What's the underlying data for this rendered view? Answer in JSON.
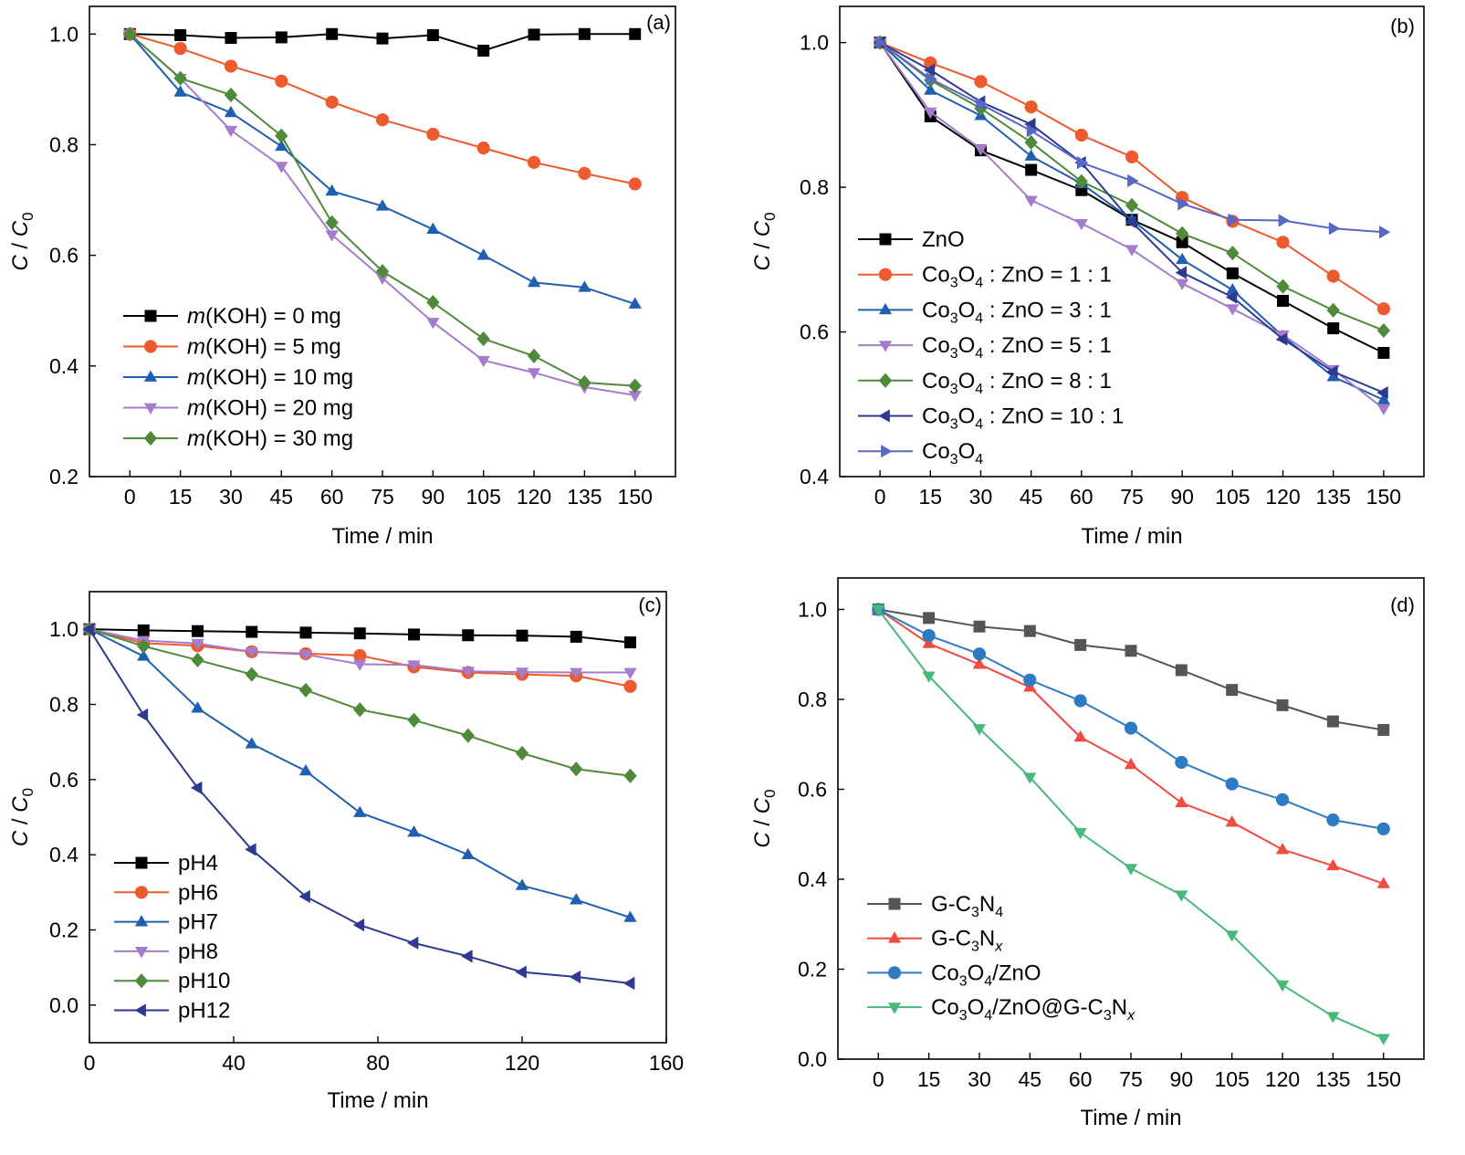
{
  "colors": {
    "black": "#000000",
    "orange": "#ec5a2e",
    "blue": "#1f5fb0",
    "violet": "#a57ccc",
    "green": "#4f8a3a",
    "navy": "#2e3a8f",
    "slate": "#5866c4",
    "gray": "#555555",
    "red": "#ef4b3f",
    "sky": "#2e7bc4",
    "mint": "#49b97b"
  },
  "chart_data": [
    {
      "panel": "(a)",
      "type": "line",
      "xlabel": "Time / min",
      "ylabel": "C / C0",
      "xlim": [
        -12,
        162
      ],
      "ylim": [
        0.2,
        1.05
      ],
      "xticks": [
        0,
        15,
        30,
        45,
        60,
        75,
        90,
        105,
        120,
        135,
        150
      ],
      "yticks": [
        0.2,
        0.4,
        0.6,
        0.8,
        1.0
      ],
      "legend_position": "bottom-left",
      "x": [
        0,
        15,
        30,
        45,
        60,
        75,
        90,
        105,
        120,
        135,
        150
      ],
      "series": [
        {
          "name": "m(KOH) = 0 mg",
          "legend": {
            "italic": "m",
            "rest": "(KOH) = 0 mg"
          },
          "marker": "square",
          "color": "#000000",
          "values": [
            1.0,
            0.998,
            0.993,
            0.994,
            1.0,
            0.992,
            0.998,
            0.97,
            0.999,
            1.0,
            1.0
          ]
        },
        {
          "name": "m(KOH) = 5 mg",
          "legend": {
            "italic": "m",
            "rest": "(KOH) = 5 mg"
          },
          "marker": "circle",
          "color": "#ec5a2e",
          "values": [
            1.0,
            0.974,
            0.942,
            0.915,
            0.877,
            0.845,
            0.819,
            0.794,
            0.768,
            0.748,
            0.729
          ]
        },
        {
          "name": "m(KOH) = 10 mg",
          "legend": {
            "italic": "m",
            "rest": "(KOH) = 10 mg"
          },
          "marker": "triangle-up",
          "color": "#1f5fb0",
          "values": [
            1.0,
            0.895,
            0.858,
            0.797,
            0.716,
            0.689,
            0.647,
            0.6,
            0.551,
            0.542,
            0.512
          ]
        },
        {
          "name": "m(KOH) = 20 mg",
          "legend": {
            "italic": "m",
            "rest": "(KOH) = 20 mg"
          },
          "marker": "triangle-down",
          "color": "#a57ccc",
          "values": [
            1.0,
            0.92,
            0.826,
            0.761,
            0.637,
            0.559,
            0.479,
            0.41,
            0.388,
            0.362,
            0.347
          ]
        },
        {
          "name": "m(KOH) = 30 mg",
          "legend": {
            "italic": "m",
            "rest": "(KOH) = 30 mg"
          },
          "marker": "diamond",
          "color": "#4f8a3a",
          "values": [
            1.0,
            0.92,
            0.89,
            0.816,
            0.659,
            0.571,
            0.515,
            0.449,
            0.418,
            0.37,
            0.364
          ]
        }
      ]
    },
    {
      "panel": "(b)",
      "type": "line",
      "xlabel": "Time / min",
      "ylabel": "C / C0",
      "xlim": [
        -12,
        162
      ],
      "ylim": [
        0.4,
        1.05
      ],
      "xticks": [
        0,
        15,
        30,
        45,
        60,
        75,
        90,
        105,
        120,
        135,
        150
      ],
      "yticks": [
        0.4,
        0.6,
        0.8,
        1.0
      ],
      "legend_position": "left",
      "x": [
        0,
        15,
        30,
        45,
        60,
        75,
        90,
        105,
        120,
        135,
        150
      ],
      "series": [
        {
          "name": "ZnO",
          "legend": {
            "parts": [
              [
                "ZnO",
                ""
              ]
            ]
          },
          "marker": "square",
          "color": "#000000",
          "values": [
            1.0,
            0.898,
            0.851,
            0.824,
            0.796,
            0.755,
            0.724,
            0.681,
            0.643,
            0.605,
            0.571
          ]
        },
        {
          "name": "Co3O4 : ZnO = 1 : 1",
          "legend": {
            "parts": [
              [
                "Co",
                ""
              ],
              [
                "3",
                "sub"
              ],
              [
                "O",
                ""
              ],
              [
                "4",
                "sub"
              ],
              [
                " : ZnO = 1 : 1",
                ""
              ]
            ]
          },
          "marker": "circle",
          "color": "#ec5a2e",
          "values": [
            1.0,
            0.972,
            0.946,
            0.911,
            0.872,
            0.842,
            0.786,
            0.753,
            0.724,
            0.677,
            0.632
          ]
        },
        {
          "name": "Co3O4 : ZnO = 3 : 1",
          "legend": {
            "parts": [
              [
                "Co",
                ""
              ],
              [
                "3",
                "sub"
              ],
              [
                "O",
                ""
              ],
              [
                "4",
                "sub"
              ],
              [
                " : ZnO = 3 : 1",
                ""
              ]
            ]
          },
          "marker": "triangle-up",
          "color": "#1f5fb0",
          "values": [
            1.0,
            0.934,
            0.899,
            0.843,
            0.805,
            0.755,
            0.7,
            0.658,
            0.594,
            0.538,
            0.506
          ]
        },
        {
          "name": "Co3O4 : ZnO = 5 : 1",
          "legend": {
            "parts": [
              [
                "Co",
                ""
              ],
              [
                "3",
                "sub"
              ],
              [
                "O",
                ""
              ],
              [
                "4",
                "sub"
              ],
              [
                " : ZnO = 5 : 1",
                ""
              ]
            ]
          },
          "marker": "triangle-down",
          "color": "#a57ccc",
          "values": [
            1.0,
            0.904,
            0.853,
            0.782,
            0.75,
            0.714,
            0.667,
            0.632,
            0.596,
            0.548,
            0.494
          ]
        },
        {
          "name": "Co3O4 : ZnO = 8 : 1",
          "legend": {
            "parts": [
              [
                "Co",
                ""
              ],
              [
                "3",
                "sub"
              ],
              [
                "O",
                ""
              ],
              [
                "4",
                "sub"
              ],
              [
                " : ZnO = 8 : 1",
                ""
              ]
            ]
          },
          "marker": "diamond",
          "color": "#4f8a3a",
          "values": [
            1.0,
            0.948,
            0.909,
            0.862,
            0.808,
            0.775,
            0.736,
            0.709,
            0.663,
            0.63,
            0.602
          ]
        },
        {
          "name": "Co3O4 : ZnO = 10 : 1",
          "legend": {
            "parts": [
              [
                "Co",
                ""
              ],
              [
                "3",
                "sub"
              ],
              [
                "O",
                ""
              ],
              [
                "4",
                "sub"
              ],
              [
                " : ZnO = 10 : 1",
                ""
              ]
            ]
          },
          "marker": "triangle-left",
          "color": "#2e3a8f",
          "values": [
            1.0,
            0.962,
            0.918,
            0.887,
            0.834,
            0.752,
            0.682,
            0.648,
            0.59,
            0.545,
            0.516
          ]
        },
        {
          "name": "Co3O4",
          "legend": {
            "parts": [
              [
                "Co",
                ""
              ],
              [
                "3",
                "sub"
              ],
              [
                "O",
                ""
              ],
              [
                "4",
                "sub"
              ]
            ]
          },
          "marker": "triangle-right",
          "color": "#5866c4",
          "values": [
            1.0,
            0.95,
            0.915,
            0.878,
            0.834,
            0.809,
            0.777,
            0.755,
            0.754,
            0.743,
            0.738
          ]
        }
      ]
    },
    {
      "panel": "(c)",
      "type": "line",
      "xlabel": "Time / min",
      "ylabel": "C / C0",
      "xlim": [
        0,
        160
      ],
      "ylim": [
        -0.1,
        1.1
      ],
      "xticks": [
        0,
        40,
        80,
        120,
        160
      ],
      "yticks": [
        0.0,
        0.2,
        0.4,
        0.6,
        0.8,
        1.0
      ],
      "legend_position": "bottom-left",
      "x": [
        0,
        15,
        30,
        45,
        60,
        75,
        90,
        105,
        120,
        135,
        150
      ],
      "series": [
        {
          "name": "pH4",
          "legend": {
            "parts": [
              [
                "pH4",
                ""
              ]
            ]
          },
          "marker": "square",
          "color": "#000000",
          "values": [
            1.0,
            0.997,
            0.995,
            0.993,
            0.991,
            0.989,
            0.986,
            0.984,
            0.983,
            0.98,
            0.965
          ]
        },
        {
          "name": "pH6",
          "legend": {
            "parts": [
              [
                "pH6",
                ""
              ]
            ]
          },
          "marker": "circle",
          "color": "#ec5a2e",
          "values": [
            1.0,
            0.963,
            0.956,
            0.94,
            0.935,
            0.93,
            0.9,
            0.885,
            0.88,
            0.876,
            0.848
          ]
        },
        {
          "name": "pH7",
          "legend": {
            "parts": [
              [
                "pH7",
                ""
              ]
            ]
          },
          "marker": "triangle-up",
          "color": "#1f5fb0",
          "values": [
            1.0,
            0.928,
            0.79,
            0.695,
            0.623,
            0.512,
            0.46,
            0.4,
            0.318,
            0.28,
            0.233
          ]
        },
        {
          "name": "pH8",
          "legend": {
            "parts": [
              [
                "pH8",
                ""
              ]
            ]
          },
          "marker": "triangle-down",
          "color": "#a57ccc",
          "values": [
            1.0,
            0.97,
            0.962,
            0.94,
            0.933,
            0.907,
            0.905,
            0.888,
            0.886,
            0.885,
            0.885
          ]
        },
        {
          "name": "pH10",
          "legend": {
            "parts": [
              [
                "pH10",
                ""
              ]
            ]
          },
          "marker": "diamond",
          "color": "#4f8a3a",
          "values": [
            1.0,
            0.955,
            0.918,
            0.88,
            0.838,
            0.786,
            0.758,
            0.717,
            0.67,
            0.628,
            0.61
          ]
        },
        {
          "name": "pH12",
          "legend": {
            "parts": [
              [
                "pH12",
                ""
              ]
            ]
          },
          "marker": "triangle-left",
          "color": "#2e3a8f",
          "values": [
            1.0,
            0.772,
            0.578,
            0.414,
            0.289,
            0.213,
            0.165,
            0.13,
            0.088,
            0.075,
            0.058
          ]
        }
      ]
    },
    {
      "panel": "(d)",
      "type": "line",
      "xlabel": "Time / min",
      "ylabel": "C / C0",
      "xlim": [
        -12,
        162
      ],
      "ylim": [
        0.0,
        1.07
      ],
      "xticks": [
        0,
        15,
        30,
        45,
        60,
        75,
        90,
        105,
        120,
        135,
        150
      ],
      "yticks": [
        0.0,
        0.2,
        0.4,
        0.6,
        0.8,
        1.0
      ],
      "legend_position": "bottom-left",
      "x": [
        0,
        15,
        30,
        45,
        60,
        75,
        90,
        105,
        120,
        135,
        150
      ],
      "series": [
        {
          "name": "G-C3N4",
          "legend": {
            "parts": [
              [
                "G-C",
                ""
              ],
              [
                "3",
                "sub"
              ],
              [
                "N",
                ""
              ],
              [
                "4",
                "sub"
              ]
            ]
          },
          "marker": "square",
          "color": "#555555",
          "values": [
            1.0,
            0.981,
            0.962,
            0.952,
            0.921,
            0.908,
            0.865,
            0.821,
            0.787,
            0.751,
            0.732
          ]
        },
        {
          "name": "G-C3Nx",
          "legend": {
            "parts": [
              [
                "G-C",
                ""
              ],
              [
                "3",
                "sub"
              ],
              [
                "N",
                ""
              ],
              [
                "x",
                "subi"
              ]
            ]
          },
          "marker": "triangle-up",
          "color": "#ef4b3f",
          "values": [
            1.0,
            0.924,
            0.878,
            0.827,
            0.716,
            0.655,
            0.57,
            0.527,
            0.466,
            0.43,
            0.39
          ]
        },
        {
          "name": "Co3O4/ZnO",
          "legend": {
            "parts": [
              [
                "Co",
                ""
              ],
              [
                "3",
                "sub"
              ],
              [
                "O",
                ""
              ],
              [
                "4",
                "sub"
              ],
              [
                "/ZnO",
                ""
              ]
            ]
          },
          "marker": "circle",
          "color": "#2e7bc4",
          "values": [
            1.0,
            0.942,
            0.901,
            0.843,
            0.797,
            0.736,
            0.66,
            0.612,
            0.577,
            0.532,
            0.512
          ]
        },
        {
          "name": "Co3O4/ZnO@G-C3Nx",
          "legend": {
            "parts": [
              [
                "Co",
                ""
              ],
              [
                "3",
                "sub"
              ],
              [
                "O",
                ""
              ],
              [
                "4",
                "sub"
              ],
              [
                "/ZnO@G-C",
                ""
              ],
              [
                "3",
                "sub"
              ],
              [
                "N",
                ""
              ],
              [
                "x",
                "subi"
              ]
            ]
          },
          "marker": "triangle-down",
          "color": "#49b97b",
          "values": [
            1.0,
            0.852,
            0.735,
            0.627,
            0.504,
            0.424,
            0.365,
            0.276,
            0.165,
            0.095,
            0.046
          ]
        }
      ]
    }
  ]
}
